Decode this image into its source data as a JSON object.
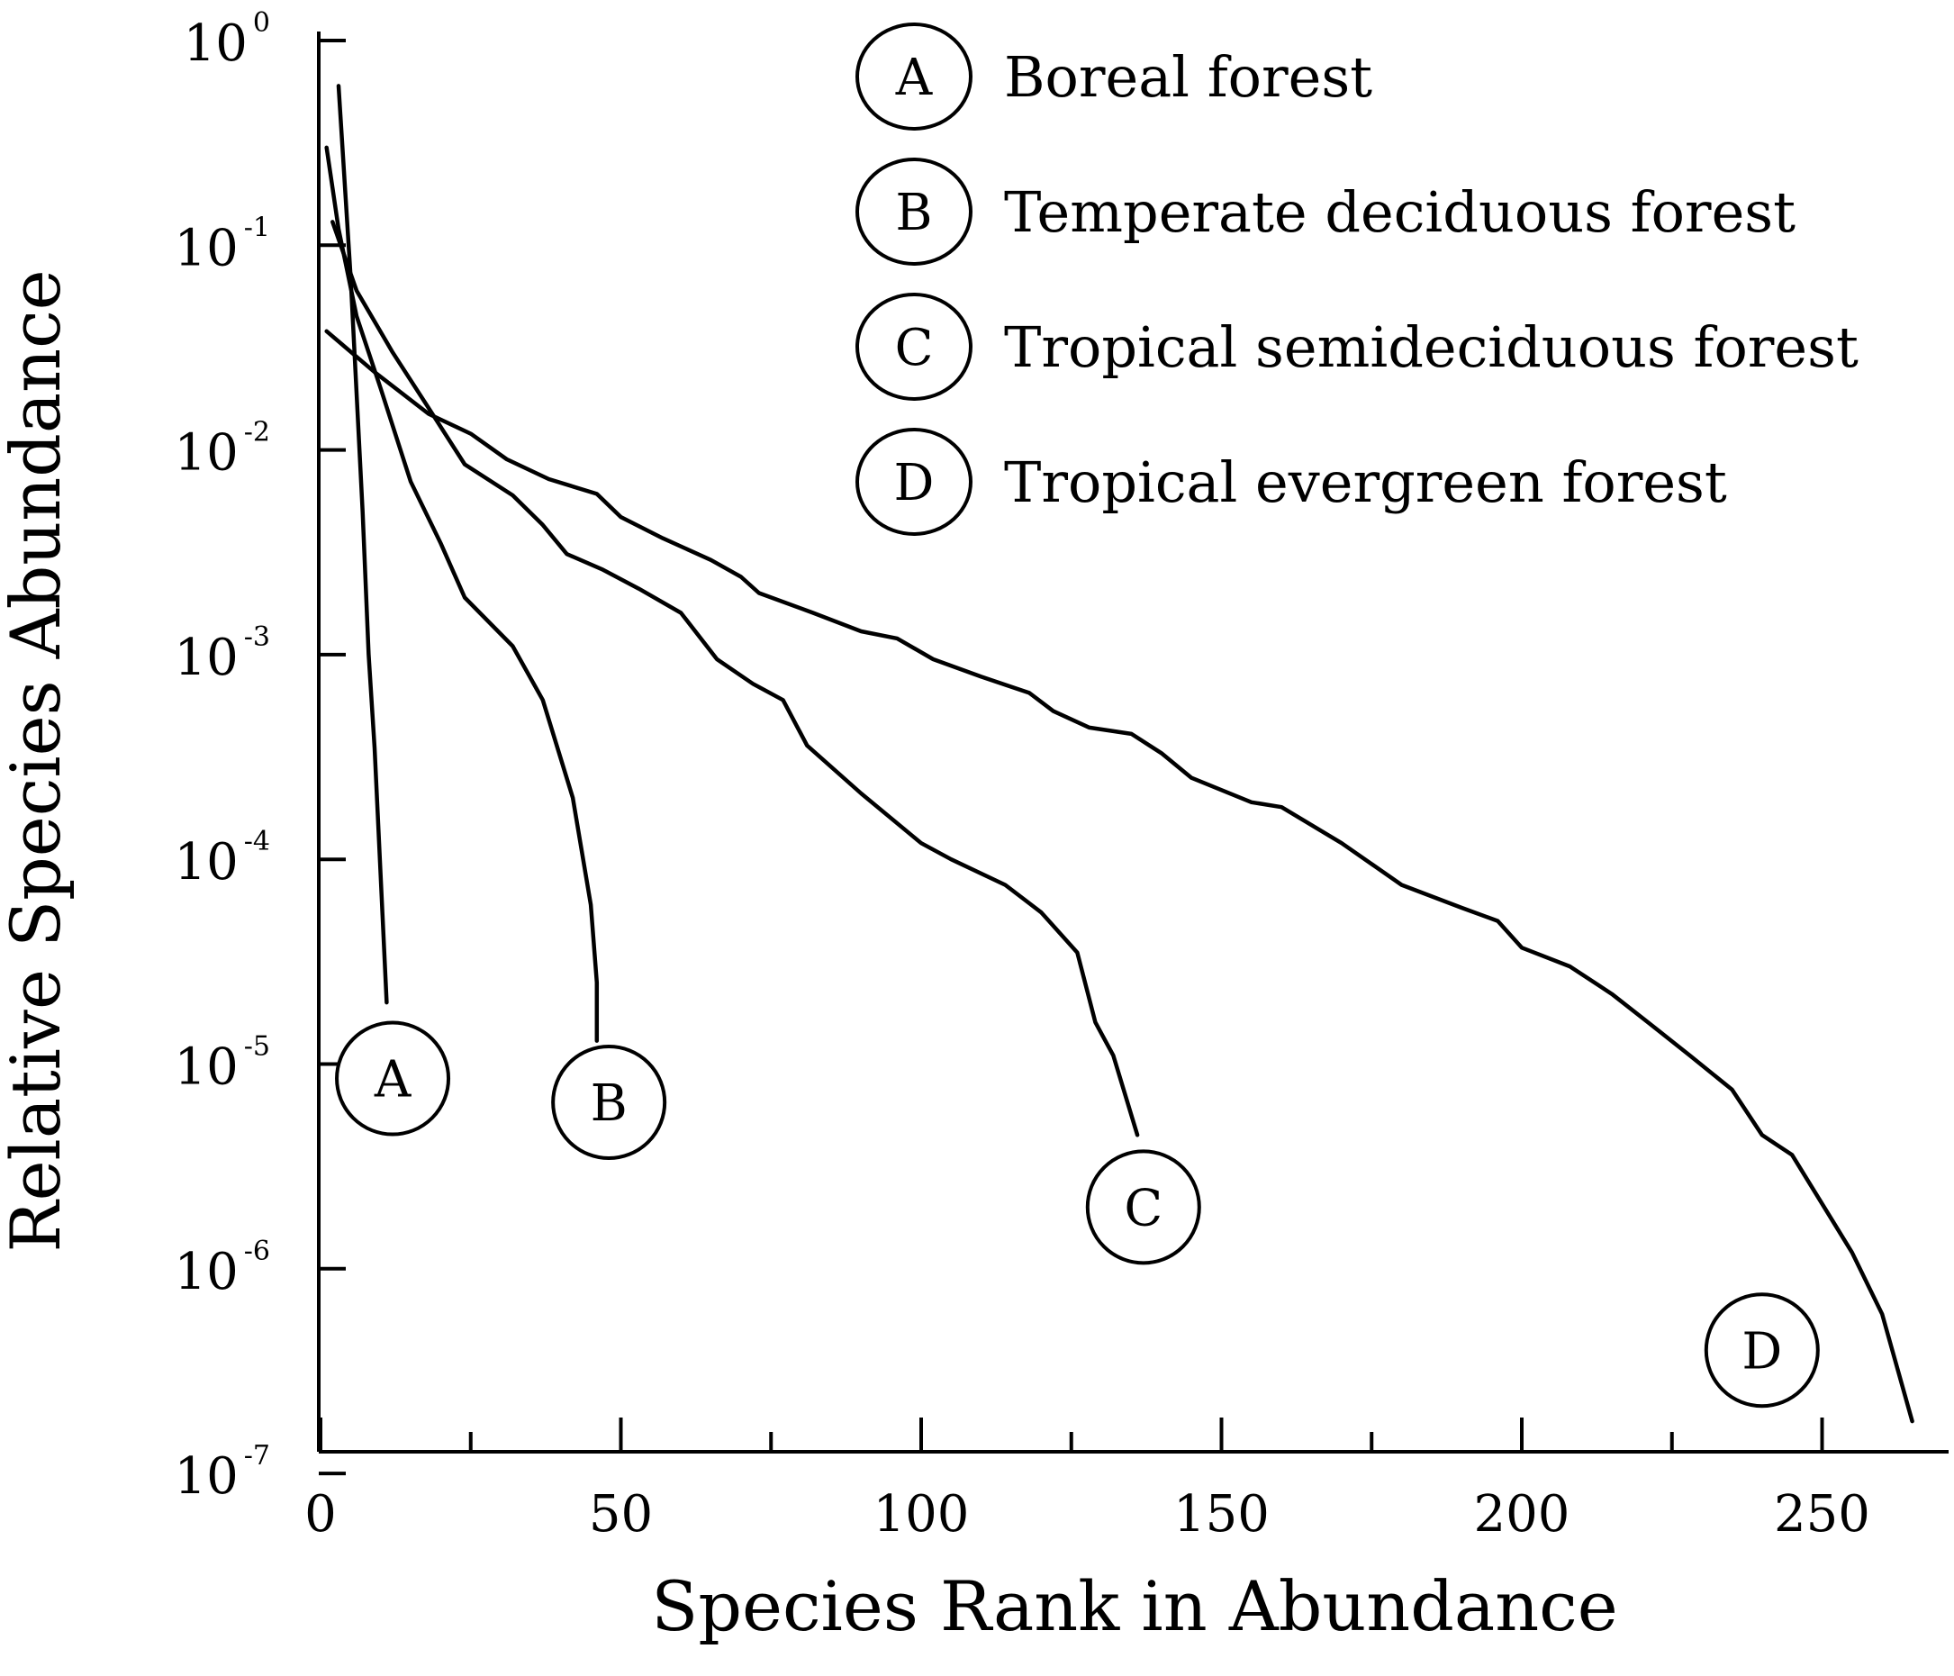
{
  "chart_data": {
    "type": "line",
    "title": "",
    "xlabel": "Species Rank in Abundance",
    "ylabel": "Relative Species Abundance",
    "xlim": [
      0,
      270
    ],
    "ylim": [
      1e-07,
      1
    ],
    "yscale": "log",
    "grid": false,
    "legend_position": "top-right",
    "x_ticks": [
      0,
      50,
      100,
      150,
      200,
      250
    ],
    "y_ticks": [
      {
        "base": "10",
        "exp": "0"
      },
      {
        "base": "10",
        "exp": "-1"
      },
      {
        "base": "10",
        "exp": "-2"
      },
      {
        "base": "10",
        "exp": "-3"
      },
      {
        "base": "10",
        "exp": "-4"
      },
      {
        "base": "10",
        "exp": "-5"
      },
      {
        "base": "10",
        "exp": "-6"
      },
      {
        "base": "10",
        "exp": "-7"
      }
    ],
    "series": [
      {
        "key": "A",
        "name": "Boreal forest",
        "points": [
          [
            3,
            0.6
          ],
          [
            5,
            0.07
          ],
          [
            7,
            0.005
          ],
          [
            8,
            0.001
          ],
          [
            9,
            0.00035
          ],
          [
            11,
            2e-05
          ]
        ]
      },
      {
        "key": "B",
        "name": "Temperate deciduous forest",
        "points": [
          [
            1,
            0.3
          ],
          [
            3,
            0.12
          ],
          [
            6,
            0.045
          ],
          [
            10,
            0.02
          ],
          [
            15,
            0.007
          ],
          [
            20,
            0.0035
          ],
          [
            24,
            0.0019
          ],
          [
            32,
            0.0011
          ],
          [
            37,
            0.0006
          ],
          [
            42,
            0.0002
          ],
          [
            45,
            6e-05
          ],
          [
            46,
            2.5e-05
          ],
          [
            46,
            1.3e-05
          ]
        ]
      },
      {
        "key": "C",
        "name": "Tropical semideciduous forest",
        "points": [
          [
            2,
            0.13
          ],
          [
            6,
            0.06
          ],
          [
            12,
            0.03
          ],
          [
            18,
            0.016
          ],
          [
            24,
            0.0085
          ],
          [
            32,
            0.006
          ],
          [
            37,
            0.0043
          ],
          [
            41,
            0.0031
          ],
          [
            47,
            0.0026
          ],
          [
            53,
            0.0021
          ],
          [
            60,
            0.0016
          ],
          [
            66,
            0.00095
          ],
          [
            72,
            0.00072
          ],
          [
            77,
            0.0006
          ],
          [
            81,
            0.00036
          ],
          [
            90,
            0.00021
          ],
          [
            100,
            0.00012
          ],
          [
            105,
            0.0001
          ],
          [
            114,
            7.5e-05
          ],
          [
            120,
            5.5e-05
          ],
          [
            126,
            3.5e-05
          ],
          [
            129,
            1.6e-05
          ],
          [
            132,
            1.1e-05
          ],
          [
            136,
            4.5e-06
          ]
        ]
      },
      {
        "key": "D",
        "name": "Tropical evergreen forest",
        "points": [
          [
            1,
            0.038
          ],
          [
            9,
            0.024
          ],
          [
            18,
            0.015
          ],
          [
            25,
            0.012
          ],
          [
            31,
            0.009
          ],
          [
            38,
            0.0072
          ],
          [
            46,
            0.0061
          ],
          [
            50,
            0.0047
          ],
          [
            57,
            0.0037
          ],
          [
            65,
            0.0029
          ],
          [
            70,
            0.0024
          ],
          [
            73,
            0.002
          ],
          [
            82,
            0.0016
          ],
          [
            90,
            0.0013
          ],
          [
            96,
            0.0012
          ],
          [
            102,
            0.00095
          ],
          [
            110,
            0.00078
          ],
          [
            118,
            0.00065
          ],
          [
            122,
            0.00053
          ],
          [
            128,
            0.00044
          ],
          [
            135,
            0.00041
          ],
          [
            140,
            0.00033
          ],
          [
            145,
            0.00025
          ],
          [
            155,
            0.00019
          ],
          [
            160,
            0.00018
          ],
          [
            170,
            0.00012
          ],
          [
            180,
            7.5e-05
          ],
          [
            190,
            5.8e-05
          ],
          [
            196,
            5e-05
          ],
          [
            200,
            3.7e-05
          ],
          [
            208,
            3e-05
          ],
          [
            215,
            2.2e-05
          ],
          [
            221,
            1.6e-05
          ],
          [
            228,
            1.1e-05
          ],
          [
            235,
            7.5e-06
          ],
          [
            240,
            4.5e-06
          ],
          [
            245,
            3.6e-06
          ],
          [
            255,
            1.2e-06
          ],
          [
            260,
            6e-07
          ],
          [
            265,
            1.8e-07
          ]
        ]
      }
    ],
    "annotations": [
      {
        "key": "A",
        "label": "A",
        "anchor": [
          12,
          8.5e-06
        ]
      },
      {
        "key": "B",
        "label": "B",
        "anchor": [
          48,
          6.5e-06
        ]
      },
      {
        "key": "C",
        "label": "C",
        "anchor": [
          137,
          2e-06
        ]
      },
      {
        "key": "D",
        "label": "D",
        "anchor": [
          240,
          4e-07
        ]
      }
    ]
  }
}
